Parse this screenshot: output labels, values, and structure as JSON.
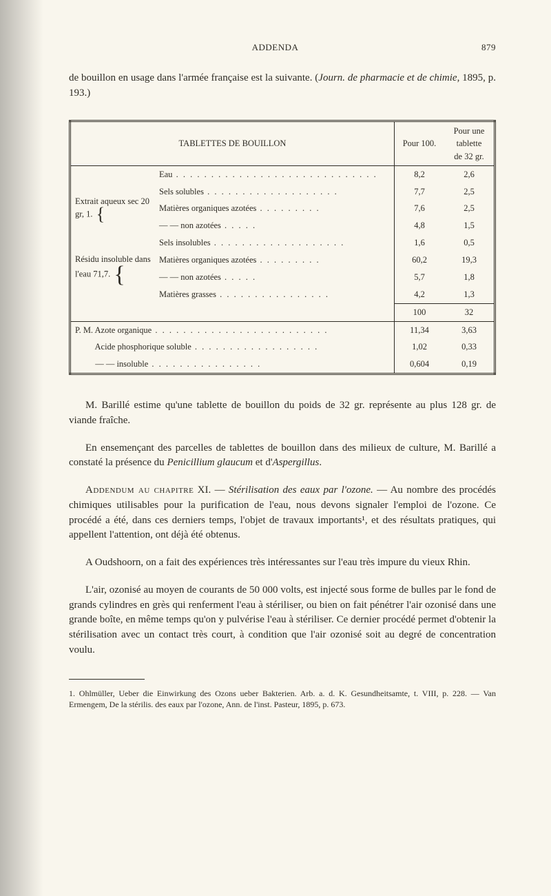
{
  "page": {
    "running_head_center": "ADDENDA",
    "page_number": "879",
    "intro_line1": "de bouillon en usage dans l'armée française est la suivante. (",
    "intro_italic": "Journ. de pharmacie et de chimie",
    "intro_line2": ", 1895, p. 193.)"
  },
  "table": {
    "head_main": "TABLETTES DE BOUILLON",
    "head_c1": "Pour 100.",
    "head_c2_l1": "Pour une",
    "head_c2_l2": "tablette",
    "head_c2_l3": "de 32 gr.",
    "rows": [
      {
        "label": "Eau",
        "sub": "",
        "v1": "8,2",
        "v2": "2,6"
      },
      {
        "group": "Extrait aqueux sec 20 gr, 1."
      },
      {
        "label": "Sels solubles",
        "v1": "7,7",
        "v2": "2,5"
      },
      {
        "label": "Matières organiques azotées",
        "v1": "7,6",
        "v2": "2,5"
      },
      {
        "label": "—               —       non azotées",
        "v1": "4,8",
        "v2": "1,5"
      },
      {
        "group": "Résidu insoluble dans l'eau 71,7."
      },
      {
        "label": "Sels insolubles",
        "v1": "1,6",
        "v2": "0,5"
      },
      {
        "label": "Matières organiques azotées",
        "v1": "60,2",
        "v2": "19,3"
      },
      {
        "label": "—               —       non azotées",
        "v1": "5,7",
        "v2": "1,8"
      },
      {
        "label": "Matières grasses",
        "v1": "4,2",
        "v2": "1,3"
      },
      {
        "total": true,
        "v1": "100",
        "v2": "32"
      },
      {
        "label": "P. M. Azote organique",
        "v1": "11,34",
        "v2": "3,63"
      },
      {
        "label": "Acide phosphorique soluble",
        "v1": "1,02",
        "v2": "0,33"
      },
      {
        "label": "—             —        insoluble",
        "v1": "0,604",
        "v2": "0,19"
      }
    ]
  },
  "paras": {
    "p1a": "M. Barillé estime qu'une tablette de bouillon du poids de 32 gr. représente au plus 128 gr. de viande fraîche.",
    "p1b": "En ensemençant des parcelles de tablettes de bouillon dans des milieux de culture, M. Barillé a constaté la présence du ",
    "p1b_it1": "Penicillium glaucum",
    "p1b_mid": " et d'",
    "p1b_it2": "Aspergillus",
    "p1b_end": ".",
    "add_sc": "Addendum au chapitre",
    "add_num": " XI. — ",
    "add_it": "Stérilisation des eaux par l'ozone.",
    "p2": "— Au nombre des procédés chimiques utilisables pour la purification de l'eau, nous devons signaler l'emploi de l'ozone. Ce procédé a été, dans ces derniers temps, l'objet de travaux importants¹, et des résultats pratiques, qui appellent l'attention, ont déjà été obtenus.",
    "p3": "A Oudshoorn, on a fait des expériences très intéressantes sur l'eau très impure du vieux Rhin.",
    "p4": "L'air, ozonisé au moyen de courants de 50 000 volts, est injecté sous forme de bulles par le fond de grands cylindres en grès qui renferment l'eau à stériliser, ou bien on fait pénétrer l'air ozonisé dans une grande boîte, en même temps qu'on y pulvérise l'eau à stériliser. Ce dernier procédé permet d'obtenir la stérilisation avec un contact très court, à condition que l'air ozonisé soit au degré de concentration voulu."
  },
  "footnote": {
    "text": "1. Ohlmüller, Ueber die Einwirkung des Ozons ueber Bakterien. Arb. a. d. K. Gesundheitsamte, t. VIII, p. 228. — Van Ermengem, De la stérilis. des eaux par l'ozone, Ann. de l'inst. Pasteur, 1895, p. 673."
  },
  "style": {
    "bg": "#f9f6ed",
    "text": "#2e2b24"
  }
}
